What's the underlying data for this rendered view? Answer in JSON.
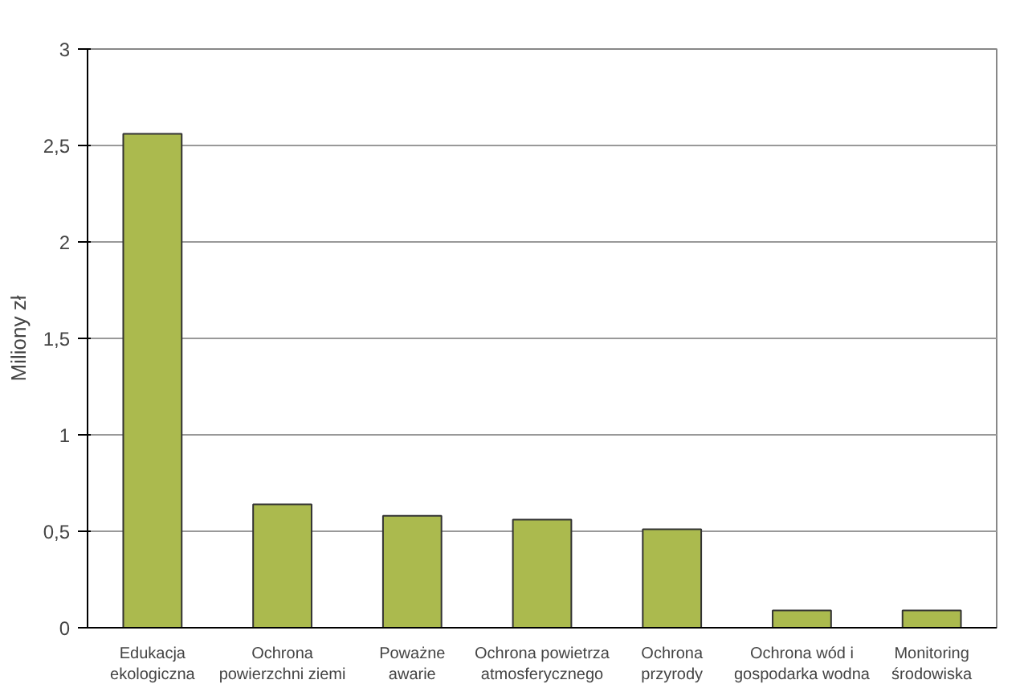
{
  "chart_data": {
    "type": "bar",
    "ylabel": "Miliony zł",
    "categories": [
      "Edukacja\nekologiczna",
      "Ochrona\npowierzchni ziemi",
      "Poważne\nawarie",
      "Ochrona powietrza\natmosferycznego",
      "Ochrona\nprzyrody",
      "Ochrona wód i\ngospodarka wodna",
      "Monitoring\nśrodowiska"
    ],
    "values": [
      2.56,
      0.64,
      0.58,
      0.56,
      0.51,
      0.09,
      0.09
    ],
    "color": "#abba4e",
    "ylim": [
      0,
      3
    ],
    "yticks": [
      0,
      {
        "value": 0.5,
        "label": "0,5"
      },
      1,
      {
        "value": 1.5,
        "label": "1,5"
      },
      2,
      {
        "value": 2.5,
        "label": "2,5"
      },
      3
    ],
    "grid": "y"
  }
}
